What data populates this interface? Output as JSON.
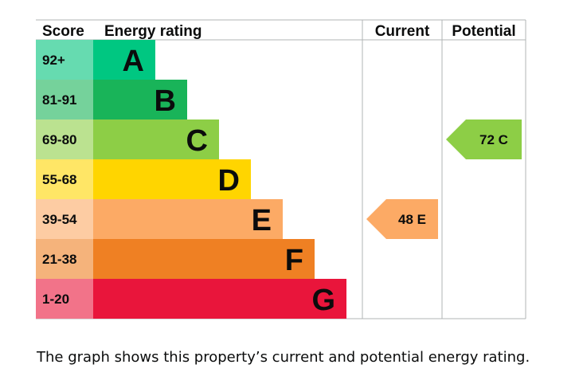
{
  "chart_data": {
    "type": "bar",
    "headers": {
      "score": "Score",
      "rating": "Energy rating",
      "current": "Current",
      "potential": "Potential"
    },
    "bands": [
      {
        "score": "92+",
        "letter": "A",
        "color": "#00c781",
        "score_bg": "#66dbb0"
      },
      {
        "score": "81-91",
        "letter": "B",
        "color": "#19b459",
        "score_bg": "#75d29b"
      },
      {
        "score": "69-80",
        "letter": "C",
        "color": "#8dce46",
        "score_bg": "#bbe290"
      },
      {
        "score": "55-68",
        "letter": "D",
        "color": "#ffd500",
        "score_bg": "#ffe666"
      },
      {
        "score": "39-54",
        "letter": "E",
        "color": "#fcaa65",
        "score_bg": "#fdcca3"
      },
      {
        "score": "21-38",
        "letter": "F",
        "color": "#ef8023",
        "score_bg": "#f5b37b"
      },
      {
        "score": "1-20",
        "letter": "G",
        "color": "#e9153b",
        "score_bg": "#f27389"
      }
    ],
    "current": {
      "value": 48,
      "letter": "E",
      "label": "48 E",
      "color": "#fcaa65"
    },
    "potential": {
      "value": 72,
      "letter": "C",
      "label": "72 C",
      "color": "#8dce46"
    }
  },
  "caption": "The graph shows this property’s current and potential energy rating."
}
